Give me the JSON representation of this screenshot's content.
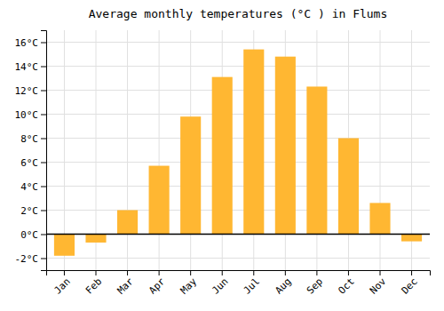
{
  "chart_data": {
    "type": "bar",
    "title": "Average monthly temperatures (°C ) in Flums",
    "categories": [
      "Jan",
      "Feb",
      "Mar",
      "Apr",
      "May",
      "Jun",
      "Jul",
      "Aug",
      "Sep",
      "Oct",
      "Nov",
      "Dec"
    ],
    "values": [
      -1.8,
      -0.7,
      2.0,
      5.7,
      9.8,
      13.1,
      15.4,
      14.8,
      12.3,
      8.0,
      2.6,
      -0.6
    ],
    "color": "#FFB732",
    "ylim": [
      -3,
      17
    ],
    "yticks": [
      {
        "value": -2,
        "label": "-2°C"
      },
      {
        "value": 0,
        "label": "0°C"
      },
      {
        "value": 2,
        "label": "2°C"
      },
      {
        "value": 4,
        "label": "4°C"
      },
      {
        "value": 6,
        "label": "6°C"
      },
      {
        "value": 8,
        "label": "8°C"
      },
      {
        "value": 10,
        "label": "10°C"
      },
      {
        "value": 12,
        "label": "12°C"
      },
      {
        "value": 14,
        "label": "14°C"
      },
      {
        "value": 16,
        "label": "16°C"
      }
    ],
    "grid": true
  }
}
